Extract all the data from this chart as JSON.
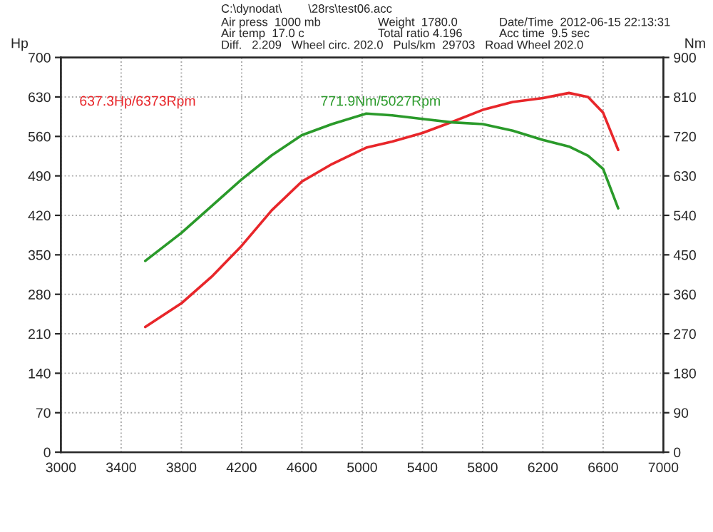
{
  "chart_data": {
    "type": "line",
    "xlabel": null,
    "ylabel": "Hp",
    "y2label": "Nm",
    "x": [
      3560,
      3800,
      4000,
      4200,
      4400,
      4600,
      4800,
      5027,
      5200,
      5400,
      5600,
      5800,
      6000,
      6200,
      6373,
      6500,
      6600,
      6700
    ],
    "series": [
      {
        "name": "637.3Hp/6373Rpm",
        "color": "#e8262a",
        "values": [
          222,
          264,
          311,
          366,
          429,
          480,
          511,
          540,
          551,
          566,
          586,
          607,
          621,
          628,
          637,
          630,
          602,
          536
        ]
      },
      {
        "name": "771.9Nm/5027Rpm",
        "color": "#2a9a2a",
        "axis": "y2",
        "values": [
          436,
          500,
          561,
          622,
          677,
          723,
          748,
          772,
          768,
          760,
          752,
          748,
          733,
          712,
          697,
          676,
          646,
          556
        ]
      }
    ],
    "xlim": [
      3000,
      7000
    ],
    "xticks": [
      3000,
      3400,
      3800,
      4200,
      4600,
      5000,
      5400,
      5800,
      6200,
      6600,
      7000
    ],
    "ylim": [
      0,
      700
    ],
    "yticks": [
      0,
      70,
      140,
      210,
      280,
      350,
      420,
      490,
      560,
      630,
      700
    ],
    "y2lim": [
      0,
      900
    ],
    "y2ticks": [
      0,
      90,
      180,
      270,
      360,
      450,
      540,
      630,
      720,
      810,
      900
    ],
    "grid": true,
    "legend": "top left",
    "line_style": "solid",
    "marker": "none",
    "annotations": [
      "C:\\dynodat\\        \\28rs\\test06.acc",
      "Air press  1000 mb",
      "Air temp  17.0 c",
      "Weight  1780.0",
      "Total ratio 4.196",
      "Date/Time  2012-06-15 22:13:31",
      "Acc time  9.5 sec",
      "Diff.   2.209   Wheel circ. 202.0   Puls/km  29703   Road Wheel 202.0"
    ]
  }
}
